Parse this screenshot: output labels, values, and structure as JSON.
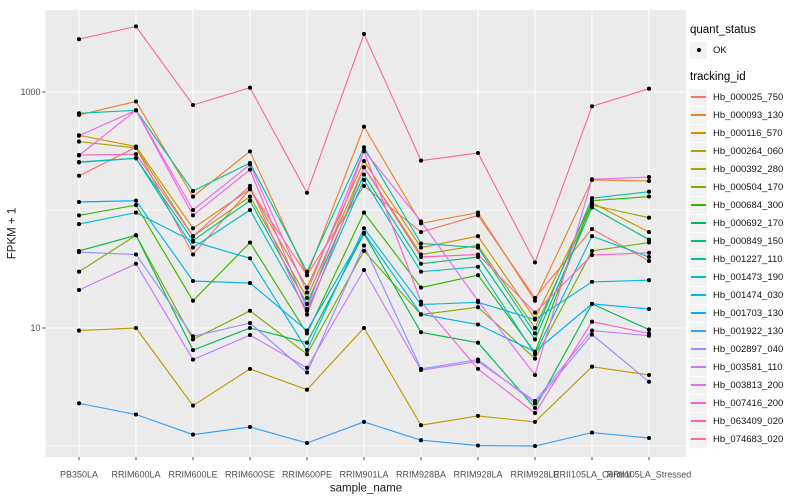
{
  "chart_data": {
    "type": "line",
    "xlabel": "sample_name",
    "ylabel": "FPKM + 1",
    "y_scale": "log10",
    "y_major_breaks": [
      10,
      1000
    ],
    "y_minor_breaks": [
      1,
      100
    ],
    "ylim": [
      1,
      3700
    ],
    "grid": "on",
    "legend_position": "right",
    "categories": [
      "PB350LA",
      "RRIM600LA",
      "RRIM600LE",
      "RRIM600SE",
      "RRIM600PE",
      "RRIM901LA",
      "RRIM928BA",
      "RRIM928LA",
      "RRIM928LE",
      "RRII105LA_Control",
      "RRII105LA_Stressed"
    ],
    "series": [
      {
        "name": "Hb_000025_750",
        "color": "#F8766D",
        "values": [
          195,
          340,
          42,
          150,
          28,
          160,
          65,
          90,
          18,
          69,
          37
        ]
      },
      {
        "name": "Hb_000093_130",
        "color": "#EA8331",
        "values": [
          640,
          830,
          130,
          314,
          28,
          508,
          77,
          95,
          17,
          180,
          176
        ]
      },
      {
        "name": "Hb_000116_570",
        "color": "#D89000",
        "values": [
          430,
          345,
          70,
          150,
          22,
          260,
          48,
          60,
          12,
          115,
          65
        ]
      },
      {
        "name": "Hb_000264_060",
        "color": "#C09B00",
        "values": [
          9.5,
          10,
          2.2,
          4.5,
          3.0,
          10,
          1.5,
          1.8,
          1.6,
          4.7,
          4.0
        ]
      },
      {
        "name": "Hb_000392_280",
        "color": "#A3A500",
        "values": [
          380,
          335,
          60,
          130,
          18,
          230,
          42,
          50,
          10,
          110,
          86
        ]
      },
      {
        "name": "Hb_000504_170",
        "color": "#7CAE00",
        "values": [
          30,
          61,
          8,
          14,
          6,
          45,
          13,
          15,
          5.5,
          45,
          53
        ]
      },
      {
        "name": "Hb_000684_300",
        "color": "#39B600",
        "values": [
          90,
          110,
          17,
          53,
          9,
          95,
          22,
          28,
          6.2,
          120,
          130
        ]
      },
      {
        "name": "Hb_000692_170",
        "color": "#00BB4E",
        "values": [
          45,
          61,
          6.5,
          10,
          7.5,
          63,
          9.2,
          7.5,
          2.1,
          16,
          9.7
        ]
      },
      {
        "name": "Hb_000849_150",
        "color": "#00BF7D",
        "values": [
          255,
          274,
          55,
          120,
          16,
          200,
          35,
          40,
          8,
          105,
          56
        ]
      },
      {
        "name": "Hb_001227_110",
        "color": "#00C1A3",
        "values": [
          660,
          700,
          145,
          250,
          30,
          340,
          52,
          48,
          9,
          126,
          143
        ]
      },
      {
        "name": "Hb_001473_190",
        "color": "#00BFC4",
        "values": [
          253,
          274,
          48,
          100,
          14,
          180,
          30,
          33,
          6,
          60,
          40
        ]
      },
      {
        "name": "Hb_001474_030",
        "color": "#00BAE0",
        "values": [
          76,
          95,
          54,
          39,
          6.5,
          70,
          15.8,
          16.5,
          11.8,
          24.6,
          25.4
        ]
      },
      {
        "name": "Hb_001703_130",
        "color": "#00B0F6",
        "values": [
          117,
          120,
          25,
          24,
          9.5,
          64,
          13.1,
          10.7,
          6.3,
          16,
          14.5
        ]
      },
      {
        "name": "Hb_001922_130",
        "color": "#35A2FF",
        "values": [
          2.3,
          1.85,
          1.25,
          1.45,
          1.06,
          1.6,
          1.12,
          1.01,
          1.0,
          1.3,
          1.17
        ]
      },
      {
        "name": "Hb_002897_040",
        "color": "#9590FF",
        "values": [
          44,
          42,
          8.5,
          11,
          4.2,
          50,
          4.5,
          5.4,
          2.3,
          8.8,
          3.5
        ]
      },
      {
        "name": "Hb_003581_110",
        "color": "#C77CFF",
        "values": [
          21,
          35,
          5.4,
          8.7,
          4.6,
          31,
          4.4,
          5.2,
          2.4,
          9.5,
          8.6
        ]
      },
      {
        "name": "Hb_003813_200",
        "color": "#E76BF3",
        "values": [
          426,
          700,
          100,
          243,
          20,
          320,
          80,
          17,
          4.0,
          182,
          190
        ]
      },
      {
        "name": "Hb_007416_200",
        "color": "#FA62DB",
        "values": [
          290,
          700,
          90,
          220,
          14.5,
          315,
          16.7,
          4.5,
          1.9,
          11.3,
          9.0
        ]
      },
      {
        "name": "Hb_063409_020",
        "color": "#FF62BC",
        "values": [
          292,
          297,
          60,
          160,
          13,
          230,
          40,
          42,
          13.5,
          41.5,
          43.4
        ]
      },
      {
        "name": "Hb_074683_020",
        "color": "#FF6A98",
        "values": [
          2800,
          3600,
          776,
          1088,
          140,
          3100,
          262,
          304,
          36,
          757,
          1067
        ]
      }
    ],
    "legend": {
      "quant_status_title": "quant_status",
      "quant_status_items": [
        "OK"
      ],
      "tracking_title": "tracking_id"
    },
    "style": {
      "panel_bg": "#EBEBEB",
      "grid_color": "#FFFFFF",
      "point_color": "#000000",
      "tick_color": "#333333",
      "tick_text_color": "#4D4D4D",
      "legend_key_bg": "#F2F2F2"
    }
  }
}
